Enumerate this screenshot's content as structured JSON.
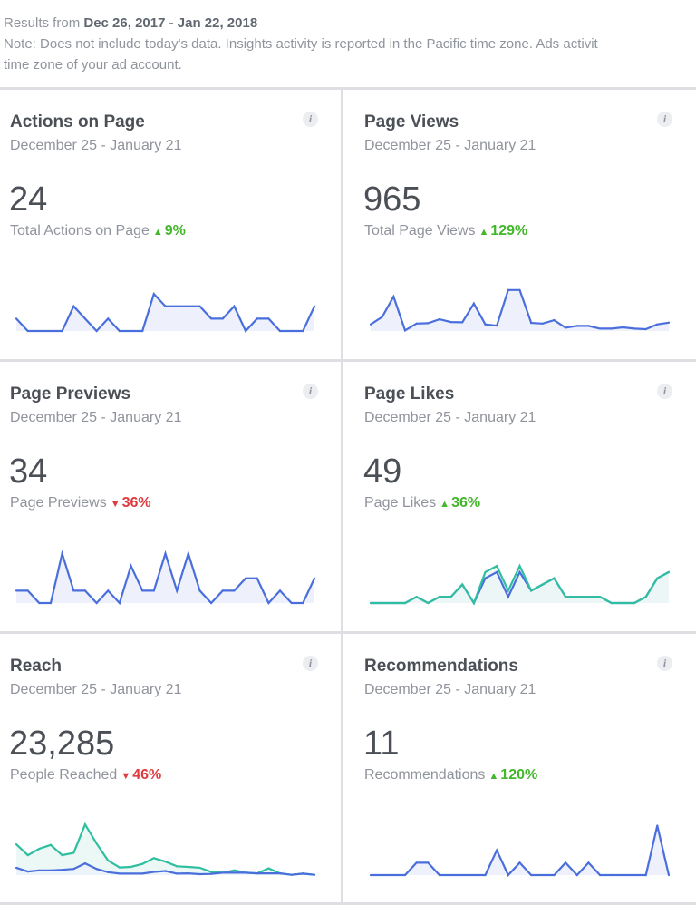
{
  "header": {
    "results_prefix": "Results from",
    "results_range": "Dec 26, 2017 - Jan 22, 2018",
    "note_line1": "Note: Does not include today's data. Insights activity is reported in the Pacific time zone. Ads activit",
    "note_line2": "time zone of your ad account."
  },
  "colors": {
    "primary_line": "#4a6fdc",
    "secondary_line": "#2fbfa0",
    "fill": "#eef1fb",
    "up": "#42b72a",
    "down": "#e0393e"
  },
  "cards": [
    {
      "title": "Actions on Page",
      "date": "December 25 - January 21",
      "value": "24",
      "label": "Total Actions on Page",
      "change": "9%",
      "direction": "up"
    },
    {
      "title": "Page Views",
      "date": "December 25 - January 21",
      "value": "965",
      "label": "Total Page Views",
      "change": "129%",
      "direction": "up"
    },
    {
      "title": "Page Previews",
      "date": "December 25 - January 21",
      "value": "34",
      "label": "Page Previews",
      "change": "36%",
      "direction": "down"
    },
    {
      "title": "Page Likes",
      "date": "December 25 - January 21",
      "value": "49",
      "label": "Page Likes",
      "change": "36%",
      "direction": "up"
    },
    {
      "title": "Reach",
      "date": "December 25 - January 21",
      "value": "23,285",
      "label": "People Reached",
      "change": "46%",
      "direction": "down"
    },
    {
      "title": "Recommendations",
      "date": "December 25 - January 21",
      "value": "11",
      "label": "Recommendations",
      "change": "120%",
      "direction": "up"
    }
  ],
  "chart_data": [
    {
      "type": "line",
      "ylim": [
        0,
        4.4
      ],
      "series": [
        {
          "color": "#4a6fdc",
          "values": [
            1,
            0,
            0,
            0,
            0,
            2,
            1,
            0,
            1,
            0,
            0,
            0,
            3,
            2,
            2,
            2,
            2,
            1,
            1,
            2,
            0,
            1,
            1,
            0,
            0,
            0,
            2
          ]
        }
      ]
    },
    {
      "type": "line",
      "ylim": [
        0,
        182
      ],
      "series": [
        {
          "color": "#4a6fdc",
          "values": [
            22,
            47,
            115,
            2,
            25,
            26,
            39,
            30,
            29,
            92,
            22,
            18,
            137,
            137,
            27,
            25,
            36,
            11,
            17,
            17,
            8,
            8,
            12,
            8,
            6,
            22,
            28
          ]
        }
      ]
    },
    {
      "type": "line",
      "ylim": [
        0,
        4.4
      ],
      "series": [
        {
          "color": "#4a6fdc",
          "values": [
            1,
            1,
            0,
            0,
            4,
            1,
            1,
            0,
            1,
            0,
            3,
            1,
            1,
            4,
            1,
            4,
            1,
            0,
            1,
            1,
            2,
            2,
            0,
            1,
            0,
            0,
            2
          ]
        }
      ]
    },
    {
      "type": "line",
      "ylim": [
        0,
        8.8
      ],
      "series": [
        {
          "color": "#4a6fdc",
          "values": [
            0,
            0,
            0,
            0,
            1,
            0,
            1,
            1,
            3,
            0,
            4,
            5,
            1,
            5,
            2,
            3,
            4,
            1,
            1,
            1,
            1,
            0,
            0,
            0,
            1,
            4,
            5
          ]
        },
        {
          "color": "#2fbfa0",
          "values": [
            0,
            0,
            0,
            0,
            1,
            0,
            1,
            1,
            3,
            0,
            5,
            6,
            2,
            6,
            2,
            3,
            4,
            1,
            1,
            1,
            1,
            0,
            0,
            0,
            1,
            4,
            5
          ]
        }
      ]
    },
    {
      "type": "area",
      "ylim": [
        0,
        186
      ],
      "series": [
        {
          "color": "#2fbfa0",
          "values": [
            105,
            68,
            90,
            103,
            68,
            76,
            173,
            108,
            50,
            26,
            28,
            38,
            58,
            46,
            30,
            28,
            25,
            11,
            8,
            16,
            8,
            6,
            23,
            6,
            1,
            5,
            1
          ]
        },
        {
          "color": "#4a6fdc",
          "values": [
            25,
            12,
            16,
            16,
            18,
            21,
            40,
            21,
            10,
            5,
            5,
            5,
            11,
            14,
            5,
            6,
            3,
            4,
            8,
            8,
            8,
            6,
            6,
            6,
            1,
            5,
            1
          ]
        }
      ]
    },
    {
      "type": "line",
      "ylim": [
        0,
        4.4
      ],
      "series": [
        {
          "color": "#4a6fdc",
          "values": [
            0,
            0,
            0,
            0,
            1,
            1,
            0,
            0,
            0,
            0,
            0,
            2,
            0,
            1,
            0,
            0,
            0,
            1,
            0,
            1,
            0,
            0,
            0,
            0,
            0,
            4,
            0
          ]
        }
      ]
    }
  ]
}
